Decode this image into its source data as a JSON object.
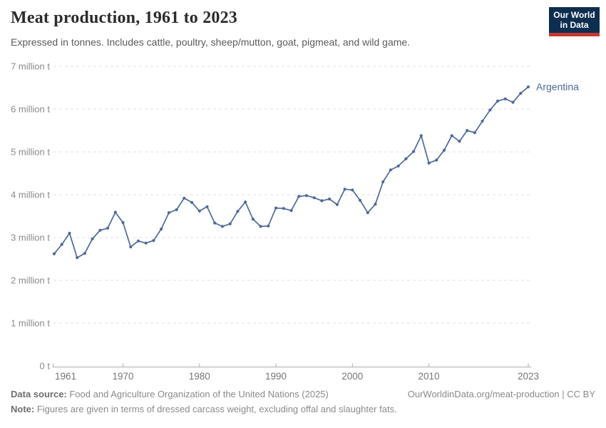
{
  "header": {
    "title": "Meat production, 1961 to 2023",
    "subtitle": "Expressed in tonnes. Includes cattle, poultry, sheep/mutton, goat, pigmeat, and wild game."
  },
  "logo": {
    "line1": "Our World",
    "line2": "in Data",
    "bg_color": "#0d2e4f",
    "accent_color": "#c43a31"
  },
  "chart_data": {
    "type": "line",
    "title": "Meat production, 1961 to 2023",
    "unit": "tonnes",
    "entity_label": "Argentina",
    "line_color": "#4C6A9C",
    "grid": "horizontal-dashed",
    "legend_position": "end-of-line",
    "ylim": [
      0,
      7
    ],
    "ylabel": "",
    "xlabel": "",
    "y_tick_values": [
      0,
      1,
      2,
      3,
      4,
      5,
      6,
      7
    ],
    "y_tick_labels": [
      "0 t",
      "1 million t",
      "2 million t",
      "3 million t",
      "4 million t",
      "5 million t",
      "6 million t",
      "7 million t"
    ],
    "x_tick_labels": [
      1961,
      1970,
      1980,
      1990,
      2000,
      2010,
      2023
    ],
    "x": [
      1961,
      1962,
      1963,
      1964,
      1965,
      1966,
      1967,
      1968,
      1969,
      1970,
      1971,
      1972,
      1973,
      1974,
      1975,
      1976,
      1977,
      1978,
      1979,
      1980,
      1981,
      1982,
      1983,
      1984,
      1985,
      1986,
      1987,
      1988,
      1989,
      1990,
      1991,
      1992,
      1993,
      1994,
      1995,
      1996,
      1997,
      1998,
      1999,
      2000,
      2001,
      2002,
      2003,
      2004,
      2005,
      2006,
      2007,
      2008,
      2009,
      2010,
      2011,
      2012,
      2013,
      2014,
      2015,
      2016,
      2017,
      2018,
      2019,
      2020,
      2021,
      2022,
      2023
    ],
    "series": [
      {
        "name": "Argentina",
        "values_million_tonnes": [
          2.62,
          2.84,
          3.1,
          2.53,
          2.63,
          2.97,
          3.17,
          3.22,
          3.59,
          3.35,
          2.78,
          2.92,
          2.87,
          2.93,
          3.2,
          3.58,
          3.65,
          3.92,
          3.82,
          3.62,
          3.72,
          3.34,
          3.26,
          3.32,
          3.61,
          3.83,
          3.43,
          3.26,
          3.27,
          3.69,
          3.68,
          3.63,
          3.96,
          3.98,
          3.93,
          3.86,
          3.9,
          3.77,
          4.13,
          4.11,
          3.87,
          3.58,
          3.78,
          4.3,
          4.58,
          4.67,
          4.84,
          5.01,
          5.38,
          4.74,
          4.81,
          5.04,
          5.38,
          5.25,
          5.5,
          5.45,
          5.72,
          5.98,
          6.19,
          6.24,
          6.16,
          6.37,
          6.52
        ]
      }
    ]
  },
  "footer": {
    "source_label": "Data source:",
    "source_text": " Food and Agriculture Organization of the United Nations (2025)",
    "link_text": "OurWorldinData.org/meat-production | CC BY",
    "note_label": "Note:",
    "note_text": " Figures are given in terms of dressed carcass weight, excluding offal and slaughter fats."
  }
}
